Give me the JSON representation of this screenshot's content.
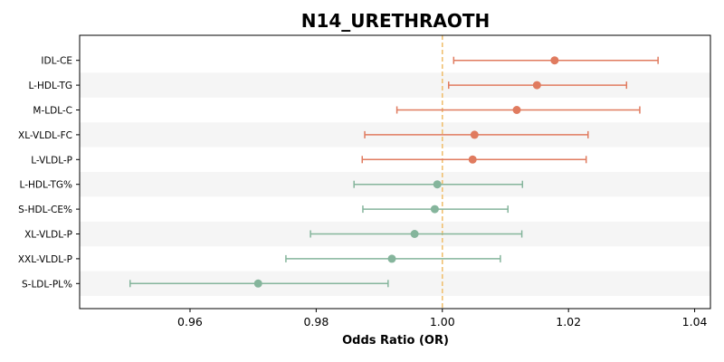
{
  "chart_data": {
    "type": "forest",
    "title": "N14_URETHRAOTH",
    "xlabel": "Odds Ratio (OR)",
    "ylabel": "",
    "xlim": [
      0.9425,
      1.0425
    ],
    "xticks": [
      0.96,
      0.98,
      1.0,
      1.02,
      1.04
    ],
    "xtick_labels": [
      "0.96",
      "0.98",
      "1.00",
      "1.02",
      "1.04"
    ],
    "reference_line": 1.0,
    "grid": false,
    "alternating_row_shading": true,
    "colors": {
      "positive": "#E07B5F",
      "negative": "#85B59C",
      "reference": "#F0C070",
      "shade": "#F5F5F5"
    },
    "rows": [
      {
        "label": "IDL-CE",
        "or": 1.0178,
        "lower": 1.0018,
        "upper": 1.0342
      },
      {
        "label": "L-HDL-TG",
        "or": 1.015,
        "lower": 1.001,
        "upper": 1.0292
      },
      {
        "label": "M-LDL-C",
        "or": 1.0118,
        "lower": 0.9928,
        "upper": 1.0313
      },
      {
        "label": "XL-VLDL-FC",
        "or": 1.0051,
        "lower": 0.9877,
        "upper": 1.0231
      },
      {
        "label": "L-VLDL-P",
        "or": 1.0048,
        "lower": 0.9873,
        "upper": 1.0228
      },
      {
        "label": "L-HDL-TG%",
        "or": 0.9992,
        "lower": 0.986,
        "upper": 1.0127
      },
      {
        "label": "S-HDL-CE%",
        "or": 0.9988,
        "lower": 0.9874,
        "upper": 1.0104
      },
      {
        "label": "XL-VLDL-P",
        "or": 0.9956,
        "lower": 0.9791,
        "upper": 1.0126
      },
      {
        "label": "XXL-VLDL-P",
        "or": 0.992,
        "lower": 0.9752,
        "upper": 1.0092
      },
      {
        "label": "S-LDL-PL%",
        "or": 0.9708,
        "lower": 0.9505,
        "upper": 0.9914
      }
    ]
  }
}
